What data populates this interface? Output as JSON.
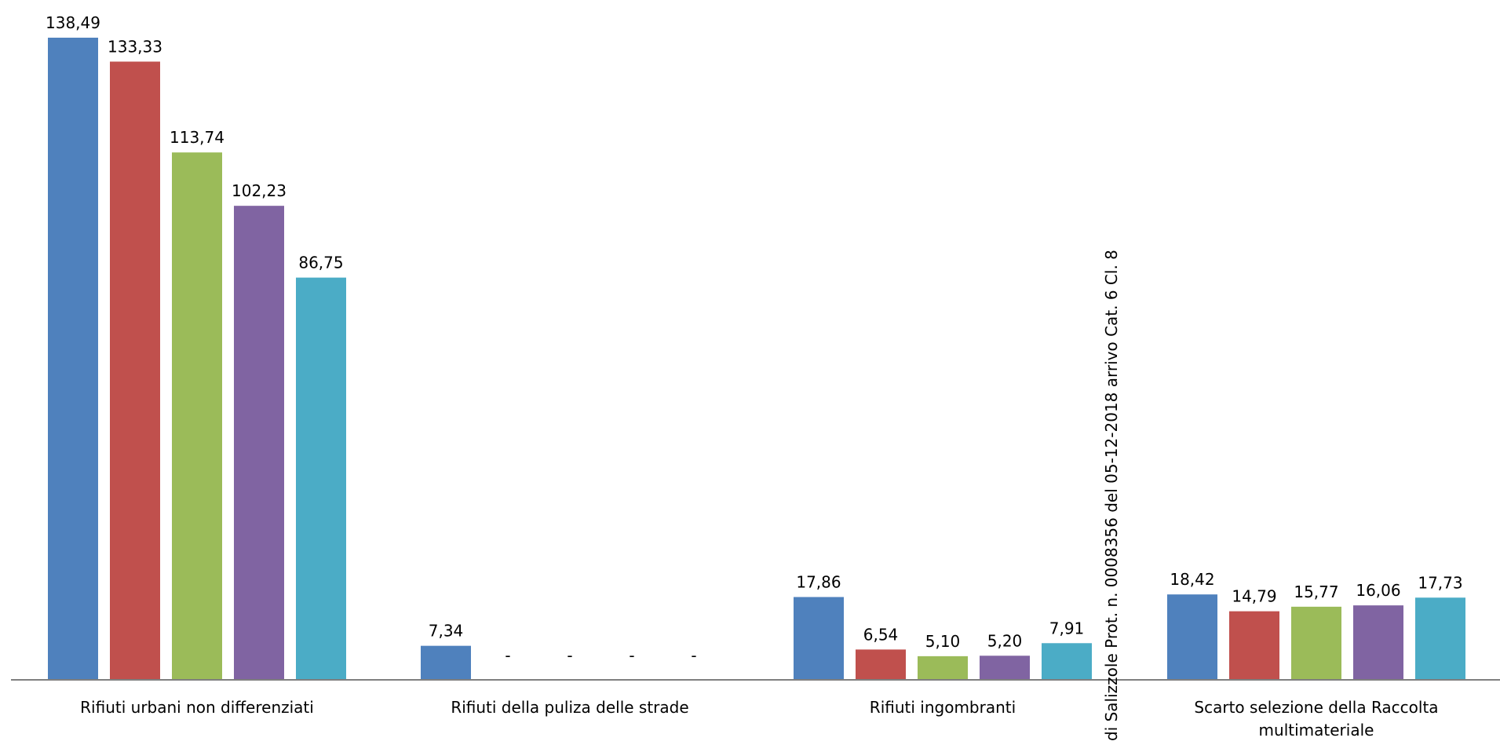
{
  "chart_data": {
    "type": "bar",
    "title": "",
    "xlabel": "",
    "ylabel": "",
    "categories": [
      "Rifiuti urbani non differenziati",
      "Rifiuti della puliza delle strade",
      "Rifiuti ingombranti",
      "Scarto selezione della Raccolta multimateriale"
    ],
    "category_lines": [
      [
        "Rifiuti urbani non differenziati"
      ],
      [
        "Rifiuti della puliza delle strade"
      ],
      [
        "Rifiuti ingombranti"
      ],
      [
        "Scarto selezione della Raccolta",
        "multimateriale"
      ]
    ],
    "series": [
      {
        "color": "#4F81BD",
        "values": [
          138.49,
          7.34,
          17.86,
          18.42
        ],
        "labels": [
          "138,49",
          "7,34",
          "17,86",
          "18,42"
        ]
      },
      {
        "color": "#C0504D",
        "values": [
          133.33,
          0,
          6.54,
          14.79
        ],
        "labels": [
          "133,33",
          "-",
          "6,54",
          "14,79"
        ]
      },
      {
        "color": "#9BBB59",
        "values": [
          113.74,
          0,
          5.1,
          15.77
        ],
        "labels": [
          "113,74",
          "-",
          "5,10",
          "15,77"
        ]
      },
      {
        "color": "#8064A2",
        "values": [
          102.23,
          0,
          5.2,
          16.06
        ],
        "labels": [
          "102,23",
          "-",
          "5,20",
          "16,06"
        ]
      },
      {
        "color": "#4BACC6",
        "values": [
          86.75,
          0,
          7.91,
          17.73
        ],
        "labels": [
          "86,75",
          "-",
          "7,91",
          "17,73"
        ]
      }
    ],
    "ylim": [
      0,
      138.49
    ],
    "grid": false,
    "legend": "none",
    "axis_color": "#7f7f7f"
  },
  "watermark": {
    "text": "di Salizzole Prot. n. 0008356 del 05-12-2018 arrivo Cat. 6 Cl. 8"
  }
}
